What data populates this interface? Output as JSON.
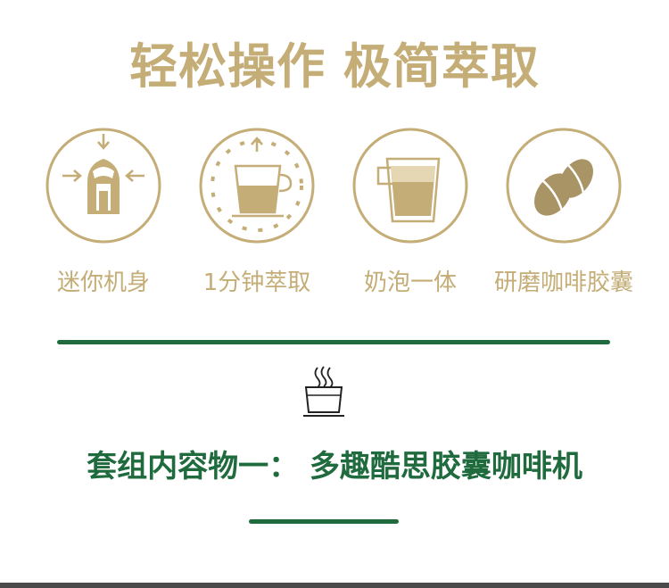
{
  "header": {
    "title": "轻松操作 极简萃取"
  },
  "features": [
    {
      "icon": "compact-machine-icon",
      "label": "迷你机身"
    },
    {
      "icon": "timer-cup-icon",
      "label": "1分钟萃取"
    },
    {
      "icon": "latte-glass-icon",
      "label": "奶泡一体"
    },
    {
      "icon": "coffee-bean-icon",
      "label": "研磨咖啡胶囊"
    }
  ],
  "section": {
    "icon": "hot-cup-icon",
    "title": "套组内容物一：  多趣酷思胶囊咖啡机"
  },
  "colors": {
    "gold": "#c4ad76",
    "green": "#1f6b3e",
    "bean": "#a89465"
  }
}
